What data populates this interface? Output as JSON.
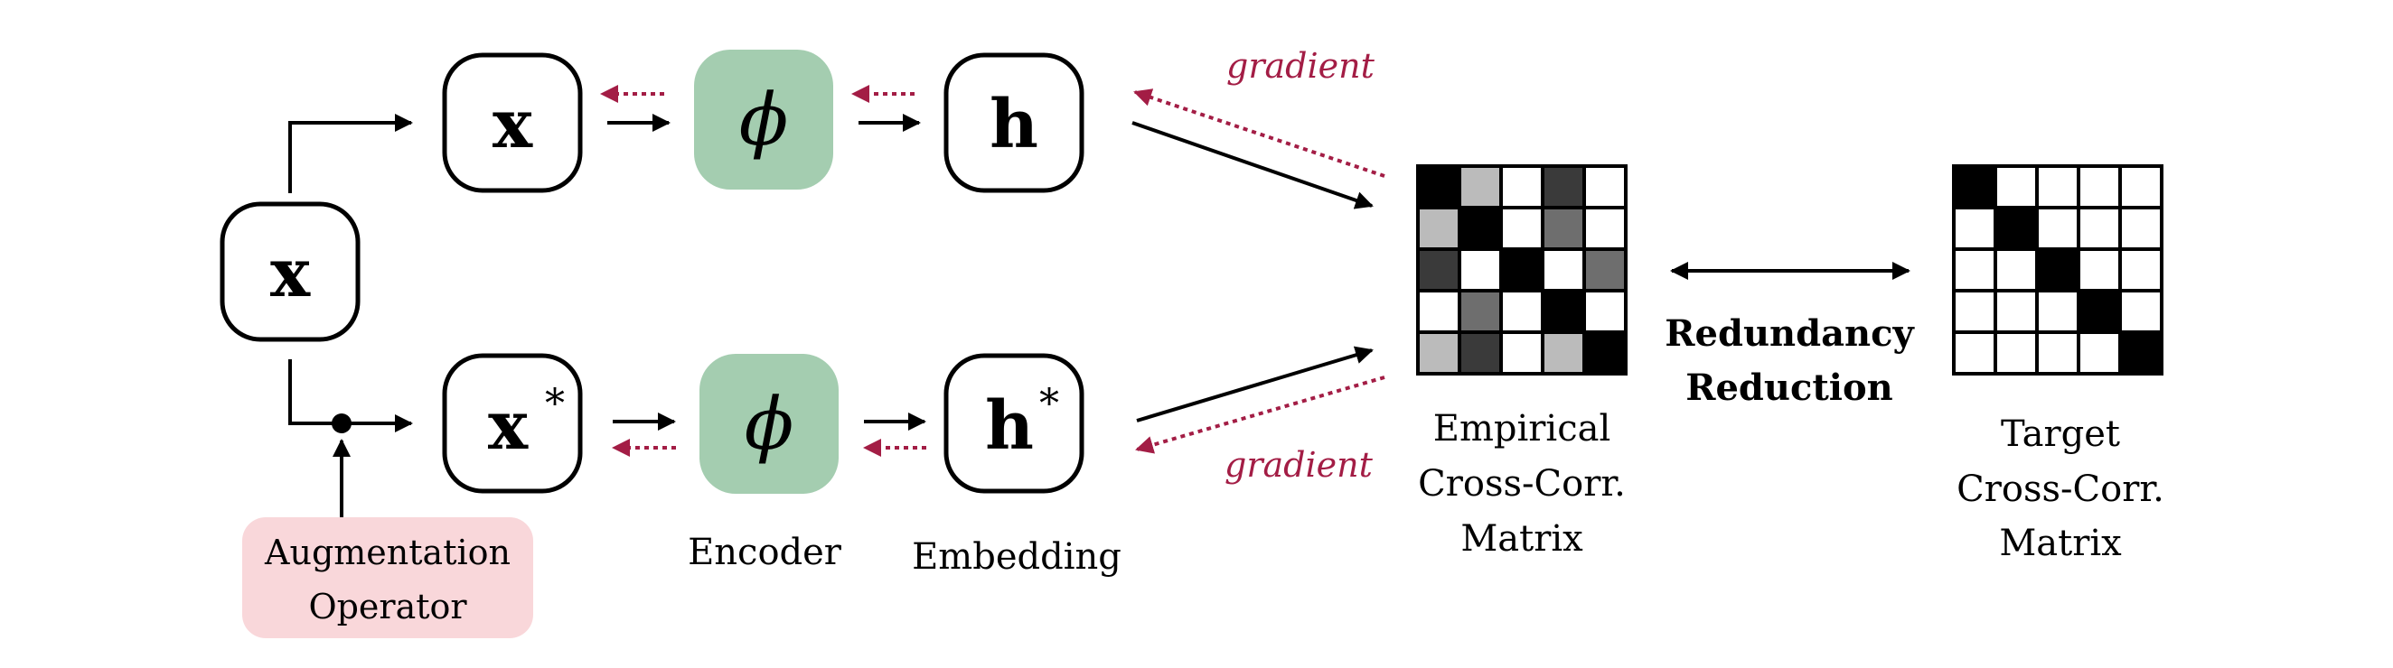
{
  "nodes": {
    "input": {
      "label": "x"
    },
    "view_top": {
      "label": "x"
    },
    "view_bottom": {
      "label": "x",
      "sup": "*"
    },
    "encoder_top": {
      "label": "ϕ"
    },
    "encoder_bottom": {
      "label": "ϕ"
    },
    "embedding_top": {
      "label": "h"
    },
    "embedding_bottom": {
      "label": "h",
      "sup": "*"
    }
  },
  "labels": {
    "augmentation": [
      "Augmentation",
      "Operator"
    ],
    "encoder": "Encoder",
    "embedding": "Embedding",
    "gradient_top": "gradient",
    "gradient_bottom": "gradient",
    "empirical": [
      "Empirical",
      "Cross-Corr.",
      "Matrix"
    ],
    "redundancy": [
      "Redundancy",
      "Reduction"
    ],
    "target": [
      "Target",
      "Cross-Corr.",
      "Matrix"
    ]
  },
  "colors": {
    "encoder_fill": "#a4cdb0",
    "augmentation_fill": "#f9d7da",
    "gradient": "#a31d45",
    "stroke": "#000000"
  },
  "matrices": {
    "empirical": [
      [
        "#000000",
        "#bbbbbb",
        "#ffffff",
        "#3a3a3a",
        "#ffffff"
      ],
      [
        "#bbbbbb",
        "#000000",
        "#ffffff",
        "#6e6e6e",
        "#ffffff"
      ],
      [
        "#3a3a3a",
        "#ffffff",
        "#000000",
        "#ffffff",
        "#6e6e6e"
      ],
      [
        "#ffffff",
        "#6e6e6e",
        "#ffffff",
        "#000000",
        "#ffffff"
      ],
      [
        "#bbbbbb",
        "#3a3a3a",
        "#ffffff",
        "#bbbbbb",
        "#000000"
      ]
    ],
    "target": [
      [
        "#000000",
        "#ffffff",
        "#ffffff",
        "#ffffff",
        "#ffffff"
      ],
      [
        "#ffffff",
        "#000000",
        "#ffffff",
        "#ffffff",
        "#ffffff"
      ],
      [
        "#ffffff",
        "#ffffff",
        "#000000",
        "#ffffff",
        "#ffffff"
      ],
      [
        "#ffffff",
        "#ffffff",
        "#ffffff",
        "#000000",
        "#ffffff"
      ],
      [
        "#ffffff",
        "#ffffff",
        "#ffffff",
        "#ffffff",
        "#000000"
      ]
    ]
  }
}
